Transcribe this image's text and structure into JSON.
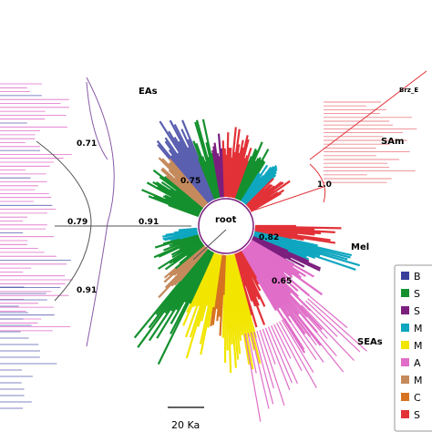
{
  "clade_labels": {
    "eas": "EAs",
    "sam": "SAm",
    "mel": "Mel",
    "seas": "SEAs",
    "brz": "Brz_E"
  },
  "root_label": "root",
  "support_values": {
    "left_upper": "0.71",
    "left_mid": "0.79",
    "left_lower": "0.91",
    "center_right": "0.91",
    "inner": "0.75",
    "sam": "1.0",
    "mel": "0.82",
    "seas": "0.65"
  },
  "scale_bar": {
    "label": "20 Ka"
  },
  "legend": {
    "entries": [
      {
        "text": "B",
        "color": "#3a3f9b"
      },
      {
        "text": "S",
        "color": "#14902e"
      },
      {
        "text": "S",
        "color": "#7b1f7e"
      },
      {
        "text": "M",
        "color": "#0fa6c0"
      },
      {
        "text": "M",
        "color": "#f2e600"
      },
      {
        "text": "A",
        "color": "#e06dc8"
      },
      {
        "text": "M",
        "color": "#c58a5c"
      },
      {
        "text": "C",
        "color": "#d67320"
      },
      {
        "text": "S",
        "color": "#e23238"
      }
    ]
  },
  "colors": {
    "east_asia_blue": "#5a5fb0",
    "green": "#14902e",
    "red": "#e23238",
    "pink": "#e06dc8",
    "yellow": "#f2e600",
    "cyan": "#0fa6c0",
    "purple": "#7b1f7e",
    "light_red": "#ee8a8f",
    "brown": "#c58a5c",
    "orange": "#d67320"
  }
}
